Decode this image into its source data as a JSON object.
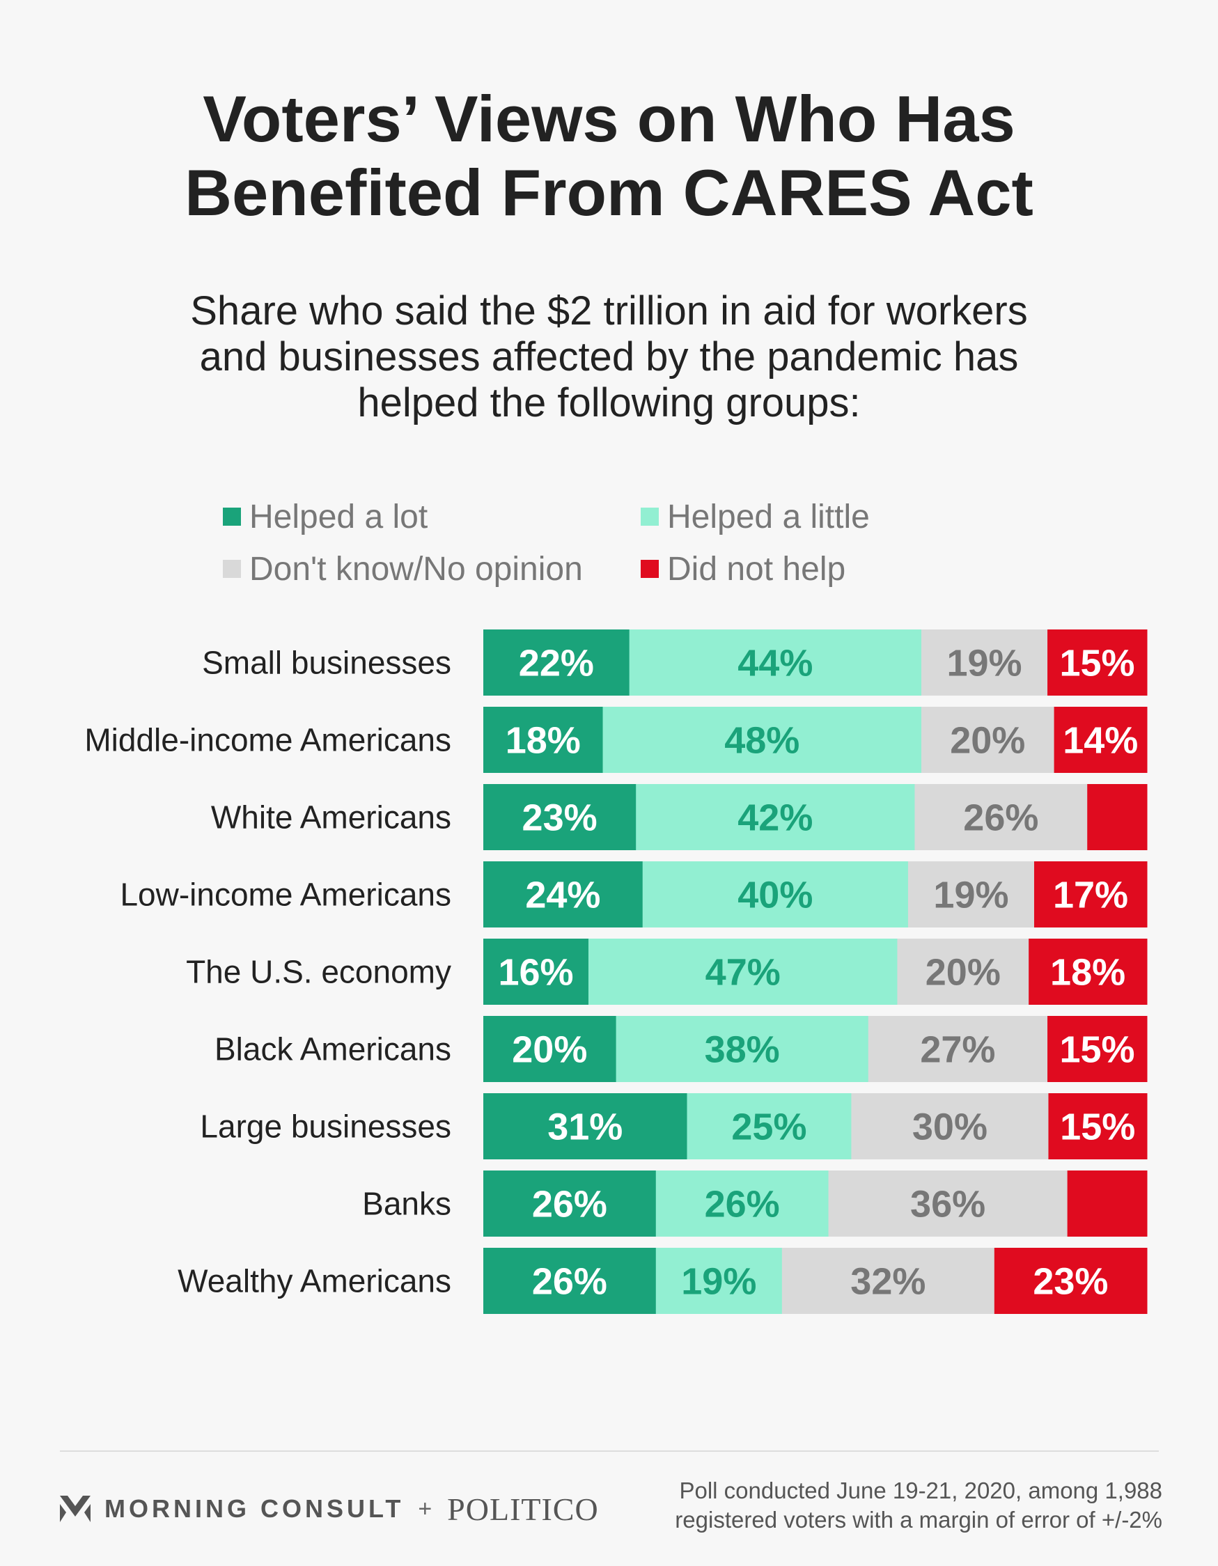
{
  "title": {
    "line1": "Voters’ Views on Who Has",
    "line2": "Benefited From CARES Act"
  },
  "subtitle": {
    "line1": "Share who said the $2 trillion in aid for workers",
    "line2": "and businesses affected by the pandemic has",
    "line3": "helped the following groups:"
  },
  "colors": {
    "helped_a_lot": "#1aa37a",
    "helped_a_little": "#92efd2",
    "dont_know": "#d9d9d9",
    "did_not_help": "#e00b1f",
    "label_white": "#ffffff",
    "label_dark_green": "#1aa37a",
    "label_gray": "#777777"
  },
  "legend": [
    {
      "label": "Helped a lot",
      "color": "#1aa37a"
    },
    {
      "label": "Helped a little",
      "color": "#92efd2"
    },
    {
      "label": "Don't know/No opinion",
      "color": "#d9d9d9"
    },
    {
      "label": "Did not help",
      "color": "#e00b1f"
    }
  ],
  "chart_data": {
    "type": "bar",
    "orientation": "horizontal",
    "stacked": "100%",
    "categories": [
      "Small businesses",
      "Middle-income Americans",
      "White Americans",
      "Low-income Americans",
      "The U.S. economy",
      "Black Americans",
      "Large businesses",
      "Banks",
      "Wealthy Americans"
    ],
    "series": [
      {
        "name": "Helped a lot",
        "values": [
          22,
          18,
          23,
          24,
          16,
          20,
          31,
          26,
          26
        ]
      },
      {
        "name": "Helped a little",
        "values": [
          44,
          48,
          42,
          40,
          47,
          38,
          25,
          26,
          19
        ]
      },
      {
        "name": "Don't know/No opinion",
        "values": [
          19,
          20,
          26,
          19,
          20,
          27,
          30,
          36,
          32
        ]
      },
      {
        "name": "Did not help",
        "values": [
          15,
          14,
          9,
          17,
          18,
          15,
          15,
          12,
          23
        ]
      }
    ],
    "hidden_labels": [
      [
        2,
        3
      ],
      [
        7,
        3
      ]
    ],
    "value_suffix": "%",
    "legend_position": "top",
    "grid": false
  },
  "footer": {
    "brand_left": "MORNING CONSULT",
    "brand_plus": "+",
    "brand_right": "POLITICO",
    "note_line1": "Poll conducted June 19-21, 2020, among 1,988",
    "note_line2": "registered voters with a margin of error of +/-2%"
  }
}
